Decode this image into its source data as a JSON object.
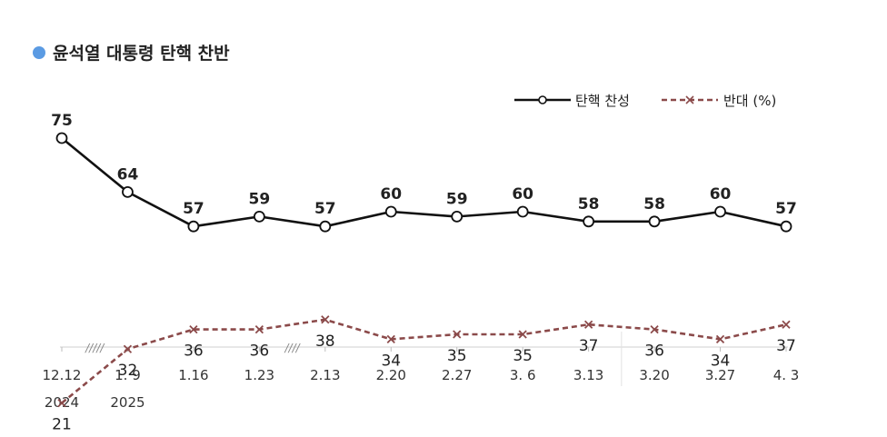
{
  "chart_data": {
    "type": "line",
    "title": "윤석열 대통령 탄핵 찬반",
    "title_bullet_color": "#5B9BE3",
    "legend_position": "top-right",
    "x_labels": [
      "12.12",
      "1. 9",
      "1.16",
      "1.23",
      "2.13",
      "2.20",
      "2.27",
      "3. 6",
      "3.13",
      "3.20",
      "3.27",
      "4. 3"
    ],
    "year_labels": [
      {
        "index": 0,
        "text": "2024"
      },
      {
        "index": 1,
        "text": "2025"
      }
    ],
    "axis_breaks": [
      {
        "after_index": 0,
        "text": "/////"
      },
      {
        "after_index": 3,
        "text": "////"
      }
    ],
    "separator_after_index": 8,
    "ylim": [
      15,
      80
    ],
    "grid": false,
    "series": [
      {
        "name": "탄핵 찬성",
        "color": "#111111",
        "style": "solid",
        "marker": "circle",
        "label_position": "above",
        "values": [
          75,
          64,
          57,
          59,
          57,
          60,
          59,
          60,
          58,
          58,
          60,
          57
        ]
      },
      {
        "name": "반대 (%)",
        "color": "#8B4A4A",
        "style": "dashed",
        "marker": "x",
        "label_position": "below",
        "values": [
          21,
          32,
          36,
          36,
          38,
          34,
          35,
          35,
          37,
          36,
          34,
          37
        ]
      }
    ]
  }
}
